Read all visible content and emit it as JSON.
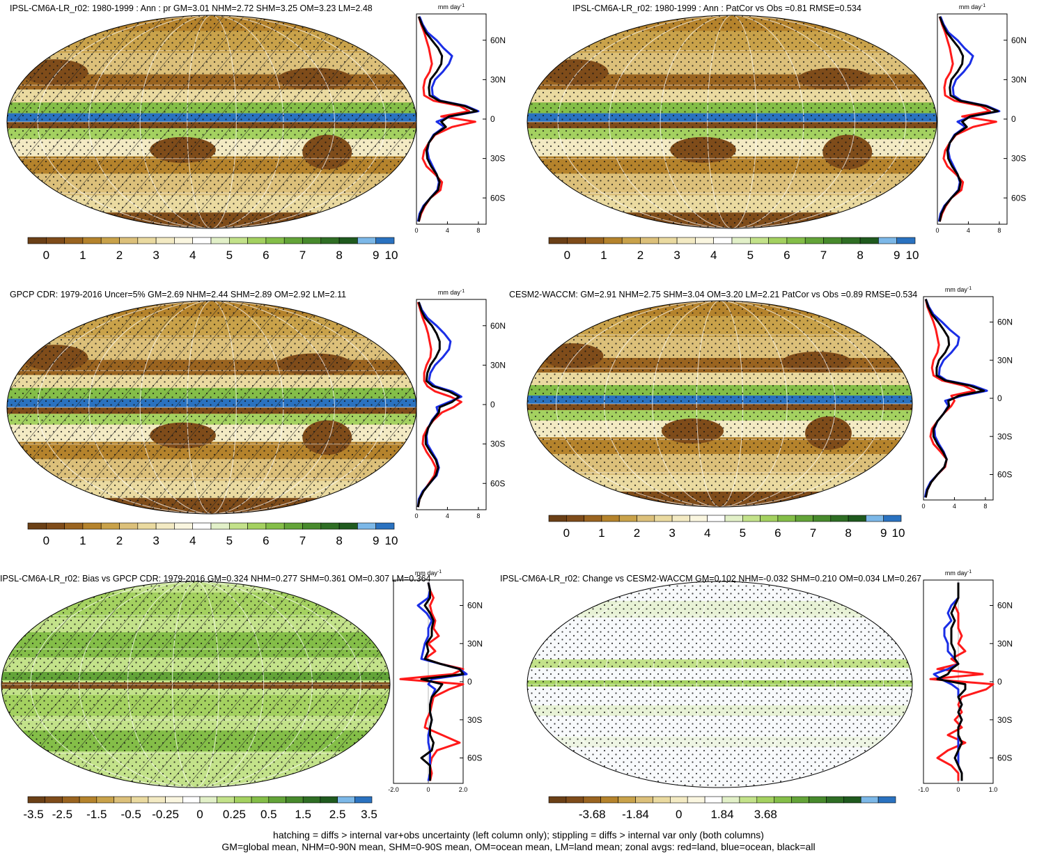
{
  "palette": [
    "#6b4016",
    "#7f4c1a",
    "#9a6420",
    "#b5832c",
    "#c9a24a",
    "#dcc07a",
    "#eadaa0",
    "#f3eac3",
    "#faf6e0",
    "#ffffff",
    "#e2f0c8",
    "#c3e28a",
    "#a4d160",
    "#84be48",
    "#63a438",
    "#478a2c",
    "#2f6e24",
    "#1f5a1e",
    "#7cb8e8",
    "#2a72c0"
  ],
  "footer": {
    "line1": "hatching = diffs > internal var+obs uncertainty (left column only); stippling = diffs > internal var only (both columns)",
    "line2": "GM=global mean, NHM=0-90N mean, SHM=0-90S mean, OM=ocean mean, LM=land mean; zonal avgs: red=land, blue=ocean, black=all"
  },
  "panels": [
    {
      "title": "IPSL-CM6A-LR_r02: 1980-1999 : Ann : pr GM=3.01 NHM=2.72 SHM=3.25 OM=3.23 LM=2.48",
      "overlay": "hatch",
      "cbar_labels": [
        "0",
        "1",
        "2",
        "3",
        "4",
        "5",
        "6",
        "7",
        "8",
        "9",
        "10"
      ],
      "chart_data": {
        "type": "line",
        "units": "mm day",
        "units_exp": "-1",
        "ylabels": [
          "60N",
          "30N",
          "0",
          "30S",
          "60S"
        ],
        "xticks": [
          "0",
          "4",
          "8"
        ],
        "xlim": [
          0,
          9
        ],
        "ylim": [
          -80,
          80
        ],
        "lat": [
          -78,
          -72,
          -66,
          -60,
          -54,
          -48,
          -42,
          -36,
          -30,
          -24,
          -18,
          -12,
          -6,
          -2,
          2,
          6,
          10,
          14,
          18,
          24,
          30,
          36,
          42,
          48,
          54,
          60,
          66,
          72,
          78
        ],
        "series": [
          {
            "color": "#ff1a1a",
            "values": [
              0.3,
              0.6,
              1.1,
              1.8,
              3.1,
              3.3,
              2.4,
              1.3,
              0.8,
              1.0,
              1.6,
              2.4,
              4.6,
              7.6,
              3.2,
              6.8,
              5.6,
              2.2,
              1.0,
              0.9,
              1.1,
              1.7,
              2.0,
              1.8,
              1.6,
              1.3,
              1.0,
              0.6,
              0.3
            ]
          },
          {
            "color": "#1a2ee6",
            "values": [
              0.2,
              0.4,
              0.9,
              1.8,
              2.7,
              2.9,
              2.6,
              2.1,
              1.6,
              1.4,
              1.6,
              2.2,
              3.6,
              2.6,
              4.4,
              8.0,
              6.4,
              3.1,
              2.1,
              2.0,
              2.4,
              3.4,
              4.2,
              4.6,
              3.5,
              2.6,
              1.4,
              0.8,
              0.4
            ]
          },
          {
            "color": "#000000",
            "values": [
              0.3,
              0.5,
              1.0,
              1.8,
              2.8,
              3.0,
              2.6,
              1.9,
              1.4,
              1.3,
              1.6,
              2.3,
              3.8,
              3.2,
              4.2,
              7.8,
              6.2,
              2.9,
              1.7,
              1.6,
              1.8,
              2.6,
              3.2,
              3.3,
              2.8,
              2.0,
              1.2,
              0.7,
              0.3
            ]
          }
        ]
      }
    },
    {
      "title": "IPSL-CM6A-LR_r02: 1980-1999 : Ann : PatCor vs Obs =0.81 RMSE=0.534",
      "overlay": "stipple",
      "cbar_labels": [
        "0",
        "1",
        "2",
        "3",
        "4",
        "5",
        "6",
        "7",
        "8",
        "9",
        "10"
      ],
      "chart_data": {
        "type": "line",
        "units": "mm day",
        "units_exp": "-1",
        "ylabels": [
          "60N",
          "30N",
          "0",
          "30S",
          "60S"
        ],
        "xticks": [
          "0",
          "4",
          "8"
        ],
        "xlim": [
          0,
          9
        ],
        "ylim": [
          -80,
          80
        ],
        "lat": [
          -78,
          -72,
          -66,
          -60,
          -54,
          -48,
          -42,
          -36,
          -30,
          -24,
          -18,
          -12,
          -6,
          -2,
          2,
          6,
          10,
          14,
          18,
          24,
          30,
          36,
          42,
          48,
          54,
          60,
          66,
          72,
          78
        ],
        "series": [
          {
            "color": "#ff1a1a",
            "values": [
              0.3,
              0.6,
              1.1,
              1.8,
              3.1,
              3.3,
              2.4,
              1.3,
              0.8,
              1.0,
              1.6,
              2.4,
              4.6,
              7.6,
              3.2,
              6.8,
              5.6,
              2.2,
              1.0,
              0.9,
              1.1,
              1.7,
              2.0,
              1.8,
              1.6,
              1.3,
              1.0,
              0.6,
              0.3
            ]
          },
          {
            "color": "#1a2ee6",
            "values": [
              0.2,
              0.4,
              0.9,
              1.8,
              2.7,
              2.9,
              2.6,
              2.1,
              1.6,
              1.4,
              1.6,
              2.2,
              3.6,
              2.6,
              4.4,
              8.0,
              6.4,
              3.1,
              2.1,
              2.0,
              2.4,
              3.4,
              4.2,
              4.6,
              3.5,
              2.6,
              1.4,
              0.8,
              0.4
            ]
          },
          {
            "color": "#000000",
            "values": [
              0.3,
              0.5,
              1.0,
              1.8,
              2.8,
              3.0,
              2.6,
              1.9,
              1.4,
              1.3,
              1.6,
              2.3,
              3.8,
              3.2,
              4.2,
              7.8,
              6.2,
              2.9,
              1.7,
              1.6,
              1.8,
              2.6,
              3.2,
              3.3,
              2.8,
              2.0,
              1.2,
              0.7,
              0.3
            ]
          }
        ]
      }
    },
    {
      "title": "GPCP CDR: 1979-2016 Uncer=5% GM=2.69 NHM=2.44 SHM=2.89 OM=2.92 LM=2.11",
      "overlay": "hatch",
      "cbar_labels": [
        "0",
        "1",
        "2",
        "3",
        "4",
        "5",
        "6",
        "7",
        "8",
        "9",
        "10"
      ],
      "chart_data": {
        "type": "line",
        "units": "mm day",
        "units_exp": "-1",
        "ylabels": [
          "60N",
          "30N",
          "0",
          "30S",
          "60S"
        ],
        "xticks": [
          "0",
          "4",
          "8"
        ],
        "xlim": [
          0,
          9
        ],
        "ylim": [
          -80,
          80
        ],
        "lat": [
          -78,
          -72,
          -66,
          -60,
          -54,
          -48,
          -42,
          -36,
          -30,
          -24,
          -18,
          -12,
          -6,
          -2,
          2,
          6,
          10,
          14,
          18,
          24,
          30,
          36,
          42,
          48,
          54,
          60,
          66,
          72,
          78
        ],
        "series": [
          {
            "color": "#ff1a1a",
            "values": [
              0.2,
              0.4,
              0.9,
              1.6,
              2.3,
              2.5,
              2.0,
              1.3,
              0.8,
              0.9,
              1.4,
              2.2,
              3.3,
              4.8,
              5.8,
              4.4,
              2.4,
              1.4,
              1.0,
              1.0,
              1.3,
              1.8,
              1.9,
              1.7,
              1.5,
              1.2,
              0.8,
              0.5,
              0.2
            ]
          },
          {
            "color": "#1a2ee6",
            "values": [
              0.2,
              0.3,
              0.8,
              1.7,
              2.6,
              2.9,
              2.6,
              2.0,
              1.4,
              1.3,
              1.5,
              2.0,
              2.8,
              2.6,
              4.2,
              5.8,
              4.6,
              2.4,
              1.6,
              1.8,
              2.4,
              3.4,
              4.2,
              4.4,
              3.6,
              2.6,
              1.4,
              0.7,
              0.3
            ]
          },
          {
            "color": "#000000",
            "values": [
              0.2,
              0.4,
              0.9,
              1.7,
              2.5,
              2.8,
              2.5,
              1.8,
              1.2,
              1.2,
              1.5,
              2.1,
              2.9,
              3.0,
              4.6,
              5.5,
              4.2,
              2.1,
              1.3,
              1.4,
              1.8,
              2.5,
              3.0,
              3.0,
              2.6,
              2.0,
              1.1,
              0.6,
              0.3
            ]
          }
        ]
      }
    },
    {
      "title": "CESM2-WACCM: GM=2.91 NHM=2.75 SHM=3.04 OM=3.20 LM=2.21 PatCor vs Obs =0.89 RMSE=0.534",
      "overlay": "stipple",
      "cbar_labels": [
        "0",
        "1",
        "2",
        "3",
        "4",
        "5",
        "6",
        "7",
        "8",
        "9",
        "10"
      ],
      "chart_data": {
        "type": "line",
        "units": "mm day",
        "units_exp": "-1",
        "ylabels": [
          "60N",
          "30N",
          "0",
          "30S",
          "60S"
        ],
        "xticks": [
          "0",
          "4",
          "8"
        ],
        "xlim": [
          0,
          9
        ],
        "ylim": [
          -80,
          80
        ],
        "lat": [
          -78,
          -72,
          -66,
          -60,
          -54,
          -48,
          -42,
          -36,
          -30,
          -24,
          -18,
          -12,
          -6,
          -2,
          2,
          6,
          10,
          14,
          18,
          24,
          30,
          36,
          42,
          48,
          54,
          60,
          66,
          72,
          78
        ],
        "series": [
          {
            "color": "#ff1a1a",
            "values": [
              0.3,
              0.5,
              1.0,
              1.8,
              2.8,
              3.0,
              2.2,
              1.3,
              0.9,
              1.1,
              1.8,
              2.6,
              3.6,
              4.0,
              3.6,
              6.6,
              5.2,
              2.4,
              1.3,
              1.1,
              1.3,
              1.8,
              2.0,
              1.8,
              1.6,
              1.3,
              0.9,
              0.5,
              0.3
            ]
          },
          {
            "color": "#1a2ee6",
            "values": [
              0.2,
              0.4,
              0.9,
              1.8,
              2.7,
              3.0,
              2.6,
              2.0,
              1.5,
              1.4,
              1.8,
              2.6,
              3.2,
              2.8,
              5.0,
              8.2,
              6.4,
              3.0,
              2.0,
              2.1,
              2.6,
              3.6,
              4.4,
              4.6,
              3.4,
              2.4,
              1.3,
              0.7,
              0.3
            ]
          },
          {
            "color": "#000000",
            "values": [
              0.3,
              0.5,
              1.0,
              1.8,
              2.7,
              3.0,
              2.5,
              1.8,
              1.3,
              1.3,
              1.8,
              2.6,
              3.3,
              3.2,
              4.6,
              7.8,
              6.0,
              2.8,
              1.7,
              1.7,
              2.0,
              2.8,
              3.3,
              3.2,
              2.6,
              1.9,
              1.1,
              0.6,
              0.3
            ]
          }
        ]
      }
    },
    {
      "title": "IPSL-CM6A-LR_r02: Bias vs GPCP CDR: 1979-2016 GM=0.324 NHM=0.277 SHM=0.361 OM=0.307 LM=0.364",
      "overlay": "hatch",
      "cbar_labels": [
        "-3.5",
        "-2.5",
        "-1.5",
        "-0.5",
        "-0.25",
        "0",
        "0.25",
        "0.5",
        "1.5",
        "2.5",
        "3.5"
      ],
      "chart_data": {
        "type": "line",
        "units": "mm day",
        "units_exp": "-1",
        "ylabels": [
          "60N",
          "30N",
          "0",
          "30S",
          "60S"
        ],
        "xticks": [
          "-2.0",
          "0",
          "2.0"
        ],
        "xlim": [
          -2,
          2
        ],
        "ylim": [
          -80,
          80
        ],
        "lat": [
          -78,
          -72,
          -66,
          -60,
          -54,
          -48,
          -42,
          -36,
          -30,
          -24,
          -18,
          -12,
          -6,
          -2,
          2,
          6,
          10,
          14,
          18,
          24,
          30,
          36,
          42,
          48,
          54,
          60,
          66,
          72,
          78
        ],
        "series": [
          {
            "color": "#ff1a1a",
            "values": [
              0.1,
              0.2,
              0.1,
              0.2,
              0.5,
              1.8,
              0.8,
              -0.2,
              -0.1,
              0.1,
              0.2,
              0.3,
              1.2,
              2.0,
              -1.6,
              1.4,
              2.0,
              0.7,
              -0.2,
              0.4,
              0.0,
              0.6,
              0.3,
              0.4,
              0.2,
              0.1,
              0.3,
              0.1,
              0.0
            ]
          },
          {
            "color": "#1a2ee6",
            "values": [
              0.0,
              0.1,
              0.1,
              0.1,
              0.1,
              0.0,
              0.0,
              0.1,
              0.2,
              0.1,
              0.1,
              0.2,
              0.4,
              0.0,
              0.2,
              2.2,
              1.8,
              0.7,
              -0.4,
              -0.3,
              -0.2,
              0.0,
              0.0,
              0.2,
              -0.1,
              -0.6,
              0.0,
              0.1,
              0.0
            ]
          },
          {
            "color": "#000000",
            "values": [
              0.1,
              0.1,
              0.1,
              -0.4,
              0.2,
              0.3,
              0.1,
              0.1,
              0.2,
              0.1,
              0.1,
              0.2,
              0.6,
              0.8,
              -0.4,
              2.0,
              1.8,
              0.7,
              -0.2,
              0.0,
              -0.1,
              0.2,
              0.2,
              0.3,
              0.1,
              -0.2,
              0.1,
              0.1,
              0.0
            ]
          }
        ]
      }
    },
    {
      "title": "IPSL-CM6A-LR_r02: Change vs CESM2-WACCM GM=0.102 NHM=-0.032 SHM=0.210 OM=0.034 LM=0.267",
      "overlay": "stipple",
      "cbar_labels": [
        "-3.68",
        "-1.84",
        "0",
        "1.84",
        "3.68"
      ],
      "chart_data": {
        "type": "line",
        "units": "mm day",
        "units_exp": "-1",
        "ylabels": [
          "60N",
          "30N",
          "0",
          "30S",
          "60S"
        ],
        "xticks": [
          "-1.0",
          "0",
          "1.0"
        ],
        "xlim": [
          -1,
          1
        ],
        "ylim": [
          -80,
          80
        ],
        "lat": [
          -78,
          -72,
          -66,
          -60,
          -54,
          -48,
          -42,
          -36,
          -30,
          -24,
          -18,
          -12,
          -6,
          -2,
          2,
          6,
          10,
          14,
          18,
          24,
          30,
          36,
          42,
          48,
          54,
          60,
          66,
          72,
          78
        ],
        "series": [
          {
            "color": "#ff1a1a",
            "values": [
              0.0,
              0.0,
              -0.2,
              -0.6,
              -0.3,
              0.2,
              -0.3,
              0.1,
              -0.1,
              0.1,
              0.0,
              0.1,
              0.8,
              1.0,
              -0.8,
              0.7,
              -0.6,
              0.0,
              -0.2,
              0.2,
              0.0,
              0.1,
              0.0,
              0.0,
              0.0,
              -0.1,
              0.0,
              0.0,
              0.0
            ]
          },
          {
            "color": "#1a2ee6",
            "values": [
              0.1,
              0.1,
              0.0,
              0.0,
              0.0,
              0.0,
              0.0,
              0.0,
              0.1,
              0.0,
              0.1,
              0.0,
              0.0,
              -0.2,
              -0.5,
              -0.7,
              -0.3,
              0.0,
              -0.1,
              -0.3,
              -0.3,
              -0.4,
              -0.4,
              -0.2,
              -0.3,
              -0.2,
              0.0,
              0.0,
              0.0
            ]
          },
          {
            "color": "#000000",
            "values": [
              0.1,
              0.1,
              0.0,
              -0.1,
              0.0,
              0.1,
              0.0,
              0.0,
              0.1,
              0.0,
              0.1,
              0.0,
              0.2,
              0.2,
              -0.6,
              -0.3,
              -0.2,
              0.0,
              -0.1,
              -0.1,
              -0.2,
              -0.2,
              -0.2,
              -0.1,
              -0.2,
              -0.1,
              0.0,
              0.0,
              0.0
            ]
          }
        ]
      }
    }
  ]
}
